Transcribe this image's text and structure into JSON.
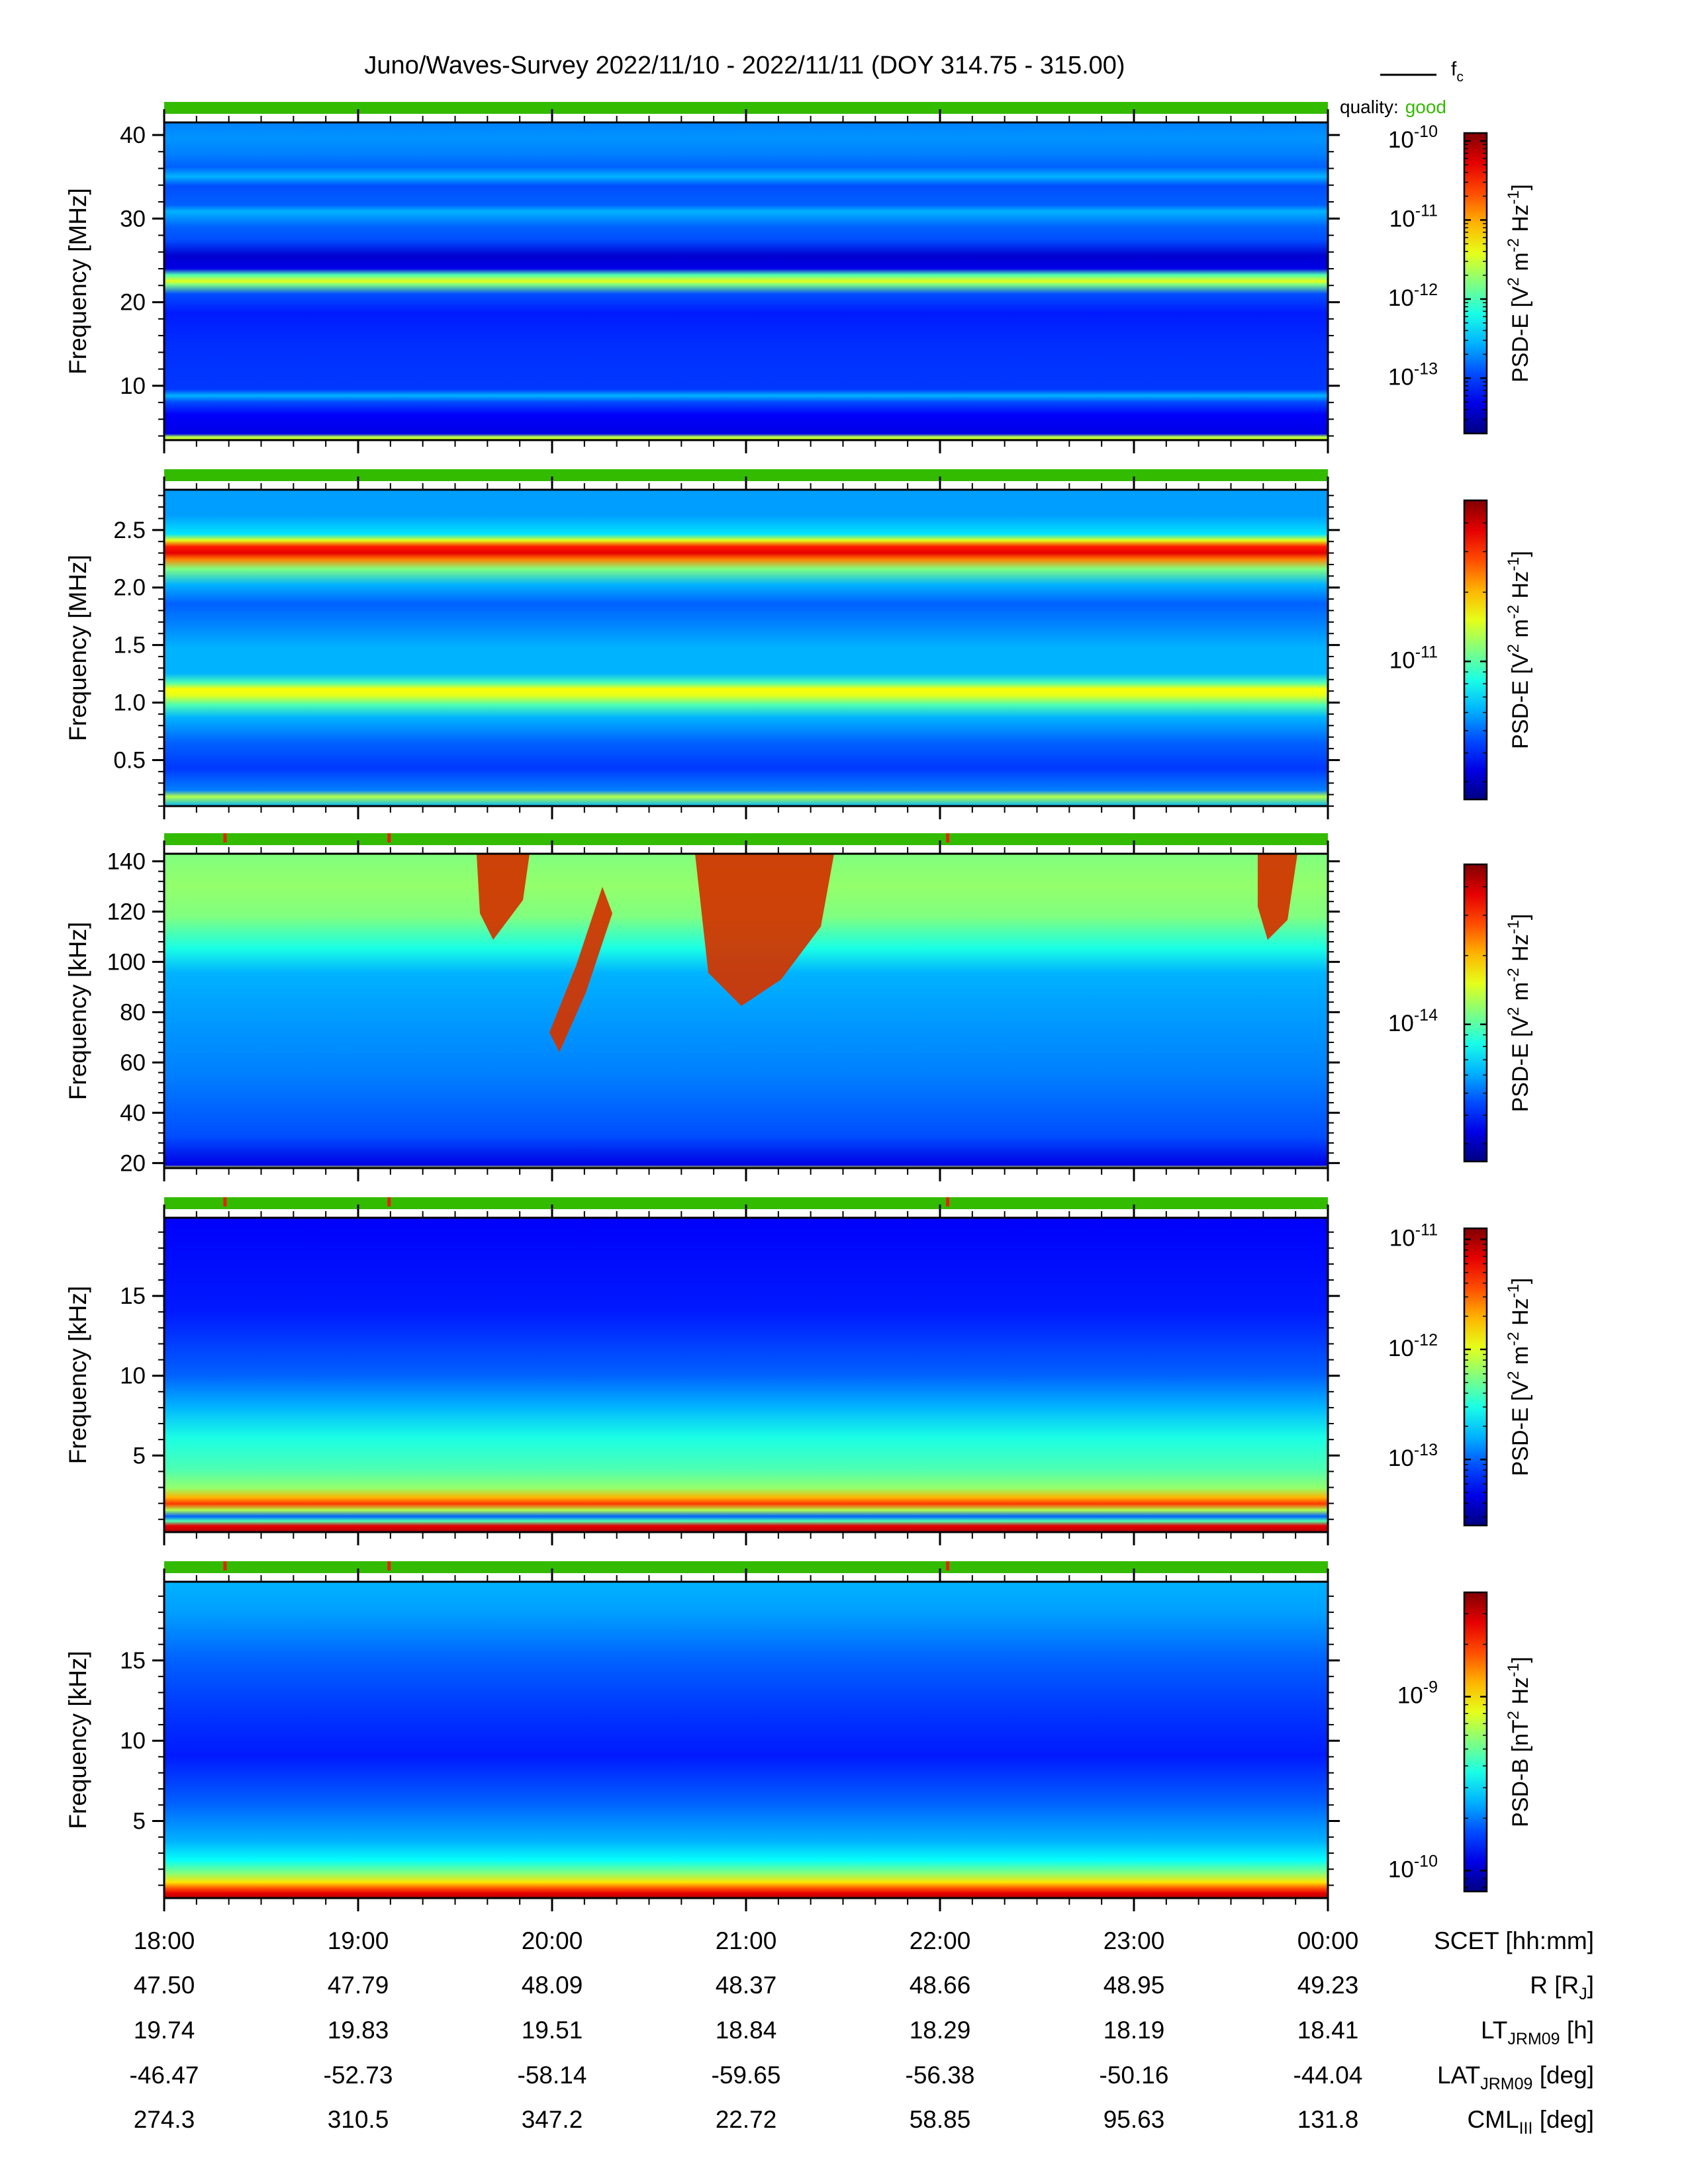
{
  "title": "Juno/Waves-Survey  2022/11/10 - 2022/11/11 (DOY 314.75 - 315.00)",
  "legend": {
    "line_label": "f",
    "line_label_sub": "c",
    "quality_label": "quality:",
    "quality_value": "good",
    "quality_color": "#33bb00"
  },
  "chart_data": {
    "type": "heatmap",
    "x_ticks": [
      "18:00",
      "19:00",
      "20:00",
      "21:00",
      "22:00",
      "23:00",
      "00:00"
    ],
    "panels": [
      {
        "ylabel": "Frequency [MHz]",
        "ylim": [
          3.5,
          41.5
        ],
        "yticks": [
          10,
          20,
          30,
          40
        ],
        "ytick_labels": [
          "10",
          "20",
          "30",
          "40"
        ],
        "colorbar": {
          "label_parts": [
            [
              "PSD-E [V",
              "n"
            ],
            [
              "2",
              "sup"
            ],
            [
              " m",
              "n"
            ],
            [
              "-2",
              "sup"
            ],
            [
              " Hz",
              "n"
            ],
            [
              "-1",
              "sup"
            ],
            [
              "]",
              "n"
            ]
          ],
          "log_range": [
            -13.7,
            -9.9
          ],
          "ticks": [
            {
              "value": -13,
              "text": "-13"
            },
            {
              "value": -12,
              "text": "-12"
            },
            {
              "value": -11,
              "text": "-11"
            },
            {
              "value": -10,
              "text": "-10"
            }
          ]
        }
      },
      {
        "ylabel": "Frequency [MHz]",
        "ylim": [
          0.1,
          2.85
        ],
        "yticks": [
          0.5,
          1.0,
          1.5,
          2.0,
          2.5
        ],
        "ytick_labels": [
          "0.5",
          "1.0",
          "1.5",
          "2.0",
          "2.5"
        ],
        "colorbar": {
          "label_parts": [
            [
              "PSD-E [V",
              "n"
            ],
            [
              "2",
              "sup"
            ],
            [
              " m",
              "n"
            ],
            [
              "-2",
              "sup"
            ],
            [
              " Hz",
              "n"
            ],
            [
              "-1",
              "sup"
            ],
            [
              "]",
              "n"
            ]
          ],
          "log_range": [
            -11.6,
            -10.3
          ],
          "ticks": [
            {
              "value": -11,
              "text": "-11"
            }
          ]
        }
      },
      {
        "ylabel": "Frequency [kHz]",
        "ylim": [
          18,
          143
        ],
        "yticks": [
          20,
          40,
          60,
          80,
          100,
          120,
          140
        ],
        "ytick_labels": [
          "20",
          "40",
          "60",
          "80",
          "100",
          "120",
          "140"
        ],
        "colorbar": {
          "label_parts": [
            [
              "PSD-E [V",
              "n"
            ],
            [
              "2",
              "sup"
            ],
            [
              " m",
              "n"
            ],
            [
              "-2",
              "sup"
            ],
            [
              " Hz",
              "n"
            ],
            [
              "-1",
              "sup"
            ],
            [
              "]",
              "n"
            ]
          ],
          "log_range": [
            -14.6,
            -13.3
          ],
          "ticks": [
            {
              "value": -14,
              "text": "-14"
            }
          ]
        }
      },
      {
        "ylabel": "Frequency [kHz]",
        "ylim": [
          0.2,
          19.9
        ],
        "yticks": [
          5,
          10,
          15
        ],
        "ytick_labels": [
          "5",
          "10",
          "15"
        ],
        "colorbar": {
          "label_parts": [
            [
              "PSD-E [V",
              "n"
            ],
            [
              "2",
              "sup"
            ],
            [
              " m",
              "n"
            ],
            [
              "-2",
              "sup"
            ],
            [
              " Hz",
              "n"
            ],
            [
              "-1",
              "sup"
            ],
            [
              "]",
              "n"
            ]
          ],
          "log_range": [
            -13.6,
            -10.9
          ],
          "ticks": [
            {
              "value": -13,
              "text": "-13"
            },
            {
              "value": -12,
              "text": "-12"
            },
            {
              "value": -11,
              "text": "-11"
            }
          ]
        }
      },
      {
        "ylabel": "Frequency [kHz]",
        "ylim": [
          0.2,
          19.9
        ],
        "yticks": [
          5,
          10,
          15
        ],
        "ytick_labels": [
          "5",
          "10",
          "15"
        ],
        "colorbar": {
          "label_parts": [
            [
              "PSD-B [nT",
              "n"
            ],
            [
              "2",
              "sup"
            ],
            [
              " Hz",
              "n"
            ],
            [
              "-1",
              "sup"
            ],
            [
              "]",
              "n"
            ]
          ],
          "log_range": [
            -10.12,
            -8.4
          ],
          "ticks": [
            {
              "value": -10,
              "text": "-10"
            },
            {
              "value": -9,
              "text": "-9"
            }
          ]
        }
      }
    ],
    "ephemeris": [
      {
        "values": [
          "18:00",
          "19:00",
          "20:00",
          "21:00",
          "22:00",
          "23:00",
          "00:00"
        ],
        "label": "SCET [hh:mm]",
        "label_sub": "",
        "label_tail": ""
      },
      {
        "values": [
          "47.50",
          "47.79",
          "48.09",
          "48.37",
          "48.66",
          "48.95",
          "49.23"
        ],
        "label": "R [R",
        "label_sub": "J",
        "label_tail": "]"
      },
      {
        "values": [
          "19.74",
          "19.83",
          "19.51",
          "18.84",
          "18.29",
          "18.19",
          "18.41"
        ],
        "label": "LT",
        "label_sub": "JRM09",
        "label_tail": " [h]"
      },
      {
        "values": [
          "-46.47",
          "-52.73",
          "-58.14",
          "-59.65",
          "-56.38",
          "-50.16",
          "-44.04"
        ],
        "label": "LAT",
        "label_sub": "JRM09",
        "label_tail": " [deg]"
      },
      {
        "values": [
          "274.3",
          "310.5",
          "347.2",
          "22.72",
          "58.85",
          "95.63",
          "131.8"
        ],
        "label": "CML",
        "label_sub": "III",
        "label_tail": " [deg]"
      }
    ]
  }
}
